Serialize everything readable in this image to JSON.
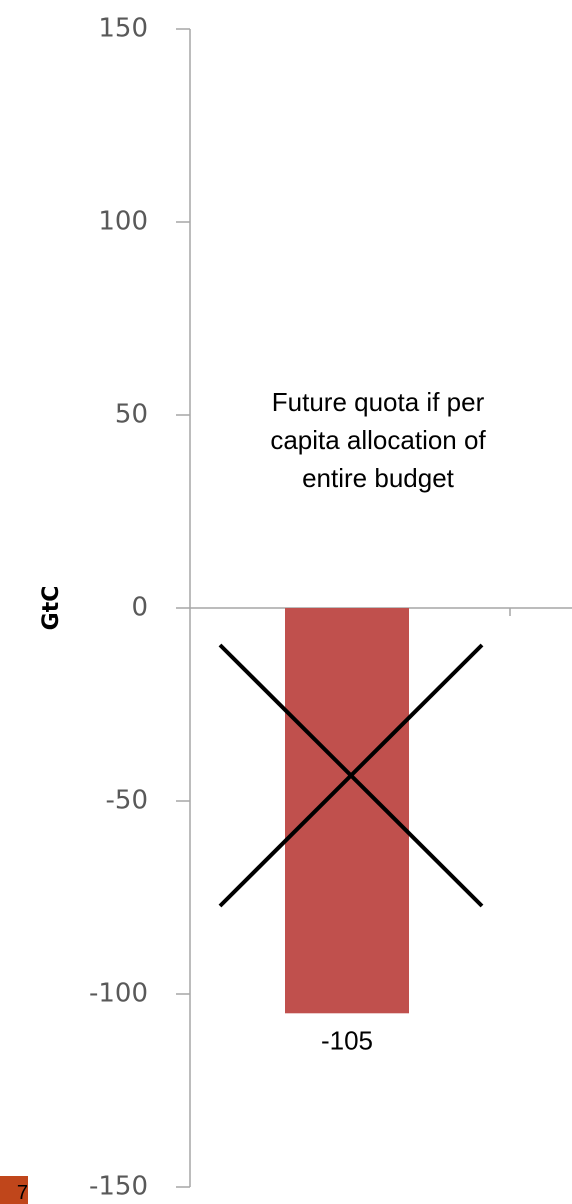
{
  "chart_data": {
    "type": "bar",
    "categories": [
      ""
    ],
    "series": [
      {
        "values": [
          -105
        ],
        "color": "#c0504d"
      }
    ],
    "ylabel": "GtC",
    "ylim": [
      -150,
      150
    ],
    "yticks": [
      150,
      100,
      50,
      0,
      -50,
      -100,
      -150
    ],
    "grid": false,
    "data_labels": [
      "-105"
    ],
    "annotations": [
      {
        "lines": [
          "Future quota if  per",
          "capita allocation of",
          "entire budget"
        ]
      }
    ],
    "crossed_out": true
  },
  "slide": {
    "number": "7"
  }
}
